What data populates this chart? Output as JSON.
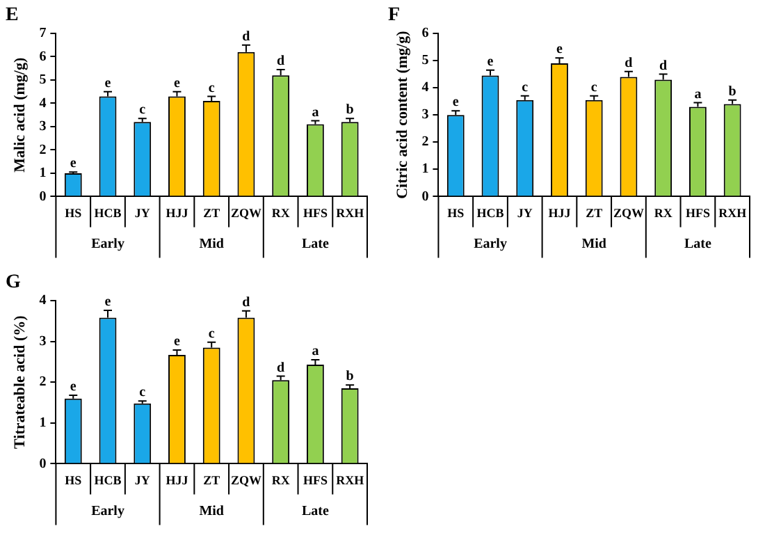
{
  "chart_data": [
    {
      "type": "bar",
      "title": "E",
      "ylabel": "Malic acid (mg/g)",
      "categories": [
        "HS",
        "HCB",
        "JY",
        "HJJ",
        "ZT",
        "ZQW",
        "RX",
        "HFS",
        "RXH"
      ],
      "values": [
        1.0,
        4.3,
        3.2,
        4.3,
        4.1,
        6.2,
        5.2,
        3.1,
        3.2
      ],
      "errors": [
        0.05,
        0.2,
        0.15,
        0.2,
        0.2,
        0.3,
        0.25,
        0.15,
        0.15
      ],
      "colors": [
        "#1aa7e8",
        "#1aa7e8",
        "#1aa7e8",
        "#ffc000",
        "#ffc000",
        "#ffc000",
        "#92d050",
        "#92d050",
        "#92d050"
      ],
      "ylim": [
        0,
        7
      ],
      "yticks": [
        0,
        1,
        2,
        3,
        4,
        5,
        6,
        7
      ],
      "grid": false,
      "legend": false,
      "annotations": [
        {
          "text": "e",
          "x": "HS",
          "y": 1.05
        },
        {
          "text": "e",
          "x": "HCB",
          "y": 4.5
        },
        {
          "text": "c",
          "x": "JY",
          "y": 3.35
        },
        {
          "text": "e",
          "x": "HJJ",
          "y": 4.5
        },
        {
          "text": "c",
          "x": "ZT",
          "y": 4.3
        },
        {
          "text": "d",
          "x": "ZQW",
          "y": 6.5
        },
        {
          "text": "d",
          "x": "RX",
          "y": 5.45
        },
        {
          "text": "a",
          "x": "HFS",
          "y": 3.25
        },
        {
          "text": "b",
          "x": "RXH",
          "y": 3.35
        },
        "Early",
        "Mid",
        "Late"
      ]
    },
    {
      "type": "bar",
      "title": "F",
      "ylabel": "Citric acid content (mg/g)",
      "categories": [
        "HS",
        "HCB",
        "JY",
        "HJJ",
        "ZT",
        "ZQW",
        "RX",
        "HFS",
        "RXH"
      ],
      "values": [
        3.0,
        4.45,
        3.55,
        4.9,
        3.55,
        4.4,
        4.3,
        3.3,
        3.4
      ],
      "errors": [
        0.15,
        0.2,
        0.15,
        0.2,
        0.15,
        0.2,
        0.2,
        0.15,
        0.15
      ],
      "colors": [
        "#1aa7e8",
        "#1aa7e8",
        "#1aa7e8",
        "#ffc000",
        "#ffc000",
        "#ffc000",
        "#92d050",
        "#92d050",
        "#92d050"
      ],
      "ylim": [
        0,
        6
      ],
      "yticks": [
        0,
        1,
        2,
        3,
        4,
        5,
        6
      ],
      "grid": false,
      "legend": false,
      "annotations": [
        {
          "text": "e",
          "x": "HS",
          "y": 3.15
        },
        {
          "text": "e",
          "x": "HCB",
          "y": 4.65
        },
        {
          "text": "c",
          "x": "JY",
          "y": 3.7
        },
        {
          "text": "e",
          "x": "HJJ",
          "y": 5.1
        },
        {
          "text": "c",
          "x": "ZT",
          "y": 3.7
        },
        {
          "text": "d",
          "x": "ZQW",
          "y": 4.6
        },
        {
          "text": "d",
          "x": "RX",
          "y": 4.5
        },
        {
          "text": "a",
          "x": "HFS",
          "y": 3.45
        },
        {
          "text": "b",
          "x": "RXH",
          "y": 3.55
        },
        "Early",
        "Mid",
        "Late"
      ]
    },
    {
      "type": "bar",
      "title": "G",
      "ylabel": "Titrateable acid (%)",
      "categories": [
        "HS",
        "HCB",
        "JY",
        "HJJ",
        "ZT",
        "ZQW",
        "RX",
        "HFS",
        "RXH"
      ],
      "values": [
        1.6,
        3.58,
        1.48,
        2.67,
        2.85,
        3.58,
        2.05,
        2.43,
        1.85
      ],
      "errors": [
        0.08,
        0.18,
        0.06,
        0.12,
        0.13,
        0.17,
        0.1,
        0.12,
        0.08
      ],
      "colors": [
        "#1aa7e8",
        "#1aa7e8",
        "#1aa7e8",
        "#ffc000",
        "#ffc000",
        "#ffc000",
        "#92d050",
        "#92d050",
        "#92d050"
      ],
      "ylim": [
        0,
        4
      ],
      "yticks": [
        0,
        1,
        2,
        3,
        4
      ],
      "grid": false,
      "legend": false,
      "annotations": [
        {
          "text": "e",
          "x": "HS",
          "y": 1.68
        },
        {
          "text": "e",
          "x": "HCB",
          "y": 3.76
        },
        {
          "text": "c",
          "x": "JY",
          "y": 1.54
        },
        {
          "text": "e",
          "x": "HJJ",
          "y": 2.79
        },
        {
          "text": "c",
          "x": "ZT",
          "y": 2.98
        },
        {
          "text": "d",
          "x": "ZQW",
          "y": 3.75
        },
        {
          "text": "d",
          "x": "RX",
          "y": 2.15
        },
        {
          "text": "a",
          "x": "HFS",
          "y": 2.55
        },
        {
          "text": "b",
          "x": "RXH",
          "y": 1.93
        },
        "Early",
        "Mid",
        "Late"
      ]
    }
  ]
}
